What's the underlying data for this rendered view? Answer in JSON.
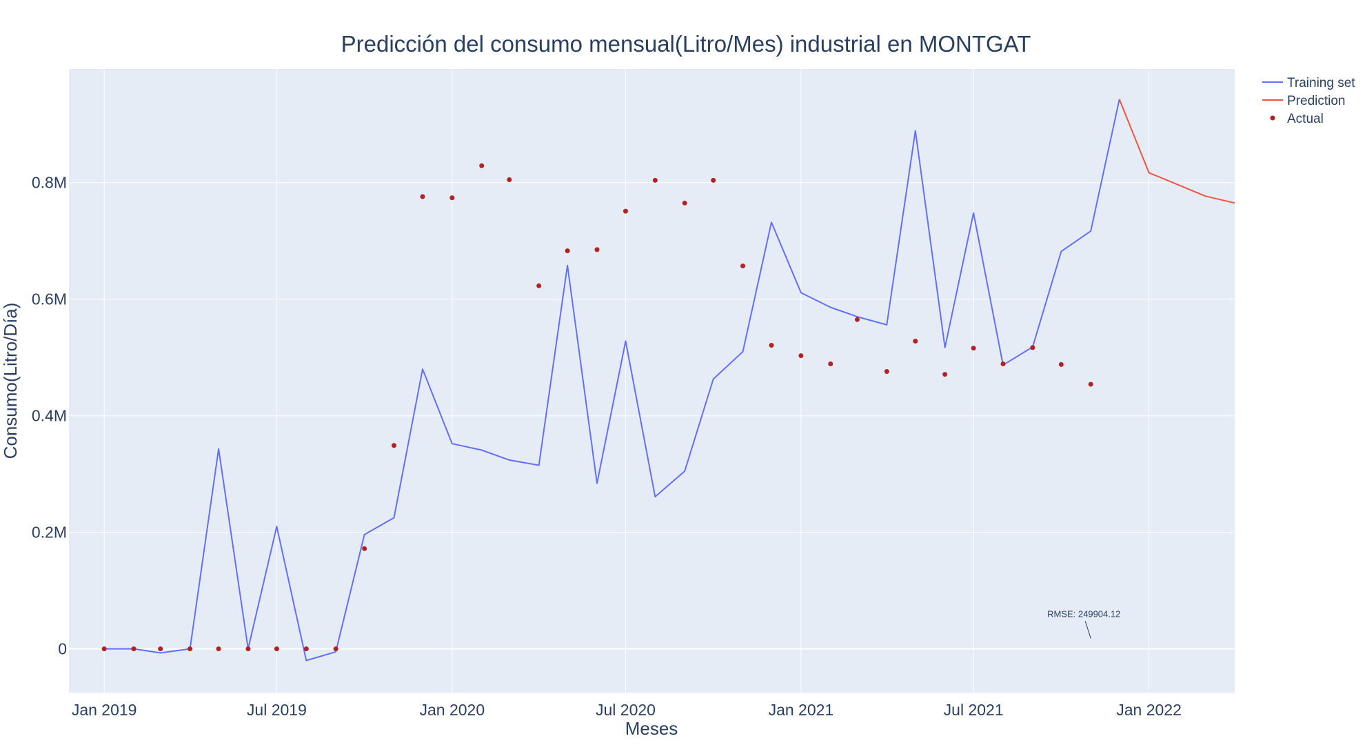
{
  "chart_data": {
    "type": "line",
    "title": "Predicción del consumo mensual(Litro/Mes) industrial en MONTGAT",
    "xlabel": "Meses",
    "ylabel": "Consumo(Litro/Día)",
    "x_range": [
      "2018-11-25",
      "2022-04-01"
    ],
    "ylim": [
      -75000,
      995000
    ],
    "x_ticks": [
      {
        "date": "2019-01-01",
        "label": "Jan 2019"
      },
      {
        "date": "2019-07-01",
        "label": "Jul 2019"
      },
      {
        "date": "2020-01-01",
        "label": "Jan 2020"
      },
      {
        "date": "2020-07-01",
        "label": "Jul 2020"
      },
      {
        "date": "2021-01-01",
        "label": "Jan 2021"
      },
      {
        "date": "2021-07-01",
        "label": "Jul 2021"
      },
      {
        "date": "2022-01-01",
        "label": "Jan 2022"
      }
    ],
    "y_ticks": [
      {
        "value": 0,
        "label": "0"
      },
      {
        "value": 200000,
        "label": "0.2M"
      },
      {
        "value": 400000,
        "label": "0.4M"
      },
      {
        "value": 600000,
        "label": "0.6M"
      },
      {
        "value": 800000,
        "label": "0.8M"
      }
    ],
    "grid": true,
    "legend_position": "top-right",
    "series": [
      {
        "name": "Training set",
        "mode": "line",
        "color": "#636efa",
        "x": [
          "2019-01-01",
          "2019-02-01",
          "2019-03-01",
          "2019-04-01",
          "2019-05-01",
          "2019-06-01",
          "2019-07-01",
          "2019-08-01",
          "2019-09-01",
          "2019-10-01",
          "2019-11-01",
          "2019-12-01",
          "2020-01-01",
          "2020-02-01",
          "2020-03-01",
          "2020-04-01",
          "2020-05-01",
          "2020-06-01",
          "2020-07-01",
          "2020-08-01",
          "2020-09-01",
          "2020-10-01",
          "2020-11-01",
          "2020-12-01",
          "2021-01-01",
          "2021-02-01",
          "2021-03-01",
          "2021-04-01",
          "2021-05-01",
          "2021-06-01",
          "2021-07-01",
          "2021-08-01",
          "2021-09-01",
          "2021-10-01",
          "2021-11-01",
          "2021-12-01"
        ],
        "y": [
          0,
          0,
          -7000,
          0,
          343000,
          0,
          210000,
          -20000,
          -5000,
          196000,
          225000,
          480000,
          352000,
          341000,
          324000,
          315000,
          658000,
          284000,
          528000,
          261000,
          305000,
          463000,
          510000,
          732000,
          611000,
          586000,
          570000,
          556000,
          889000,
          517000,
          748000,
          487000,
          518000,
          682000,
          717000,
          943000
        ]
      },
      {
        "name": "Prediction",
        "mode": "line",
        "color": "#ef553b",
        "x": [
          "2021-12-01",
          "2022-01-01",
          "2022-02-01",
          "2022-03-01",
          "2022-04-01"
        ],
        "y": [
          943000,
          817000,
          796000,
          777000,
          765000
        ]
      },
      {
        "name": "Actual",
        "mode": "markers",
        "color": "#b22222",
        "x": [
          "2019-01-01",
          "2019-02-01",
          "2019-03-01",
          "2019-04-01",
          "2019-05-01",
          "2019-06-01",
          "2019-07-01",
          "2019-08-01",
          "2019-09-01",
          "2019-10-01",
          "2019-11-01",
          "2019-12-01",
          "2020-01-01",
          "2020-02-01",
          "2020-03-01",
          "2020-04-01",
          "2020-05-01",
          "2020-06-01",
          "2020-07-01",
          "2020-08-01",
          "2020-09-01",
          "2020-10-01",
          "2020-11-01",
          "2020-12-01",
          "2021-01-01",
          "2021-02-01",
          "2021-03-01",
          "2021-04-01",
          "2021-05-01",
          "2021-06-01",
          "2021-07-01",
          "2021-08-01",
          "2021-09-01",
          "2021-10-01",
          "2021-11-01"
        ],
        "y": [
          0,
          0,
          0,
          0,
          0,
          0,
          0,
          0,
          0,
          172000,
          349000,
          776000,
          774000,
          829000,
          805000,
          623000,
          683000,
          685000,
          751000,
          804000,
          765000,
          804000,
          657000,
          521000,
          503000,
          489000,
          565000,
          476000,
          528000,
          471000,
          516000,
          489000,
          517000,
          488000,
          454000
        ]
      }
    ],
    "annotations": [
      {
        "text": "RMSE: 249904.12",
        "x": "2021-11-01",
        "y": 18000
      }
    ]
  }
}
